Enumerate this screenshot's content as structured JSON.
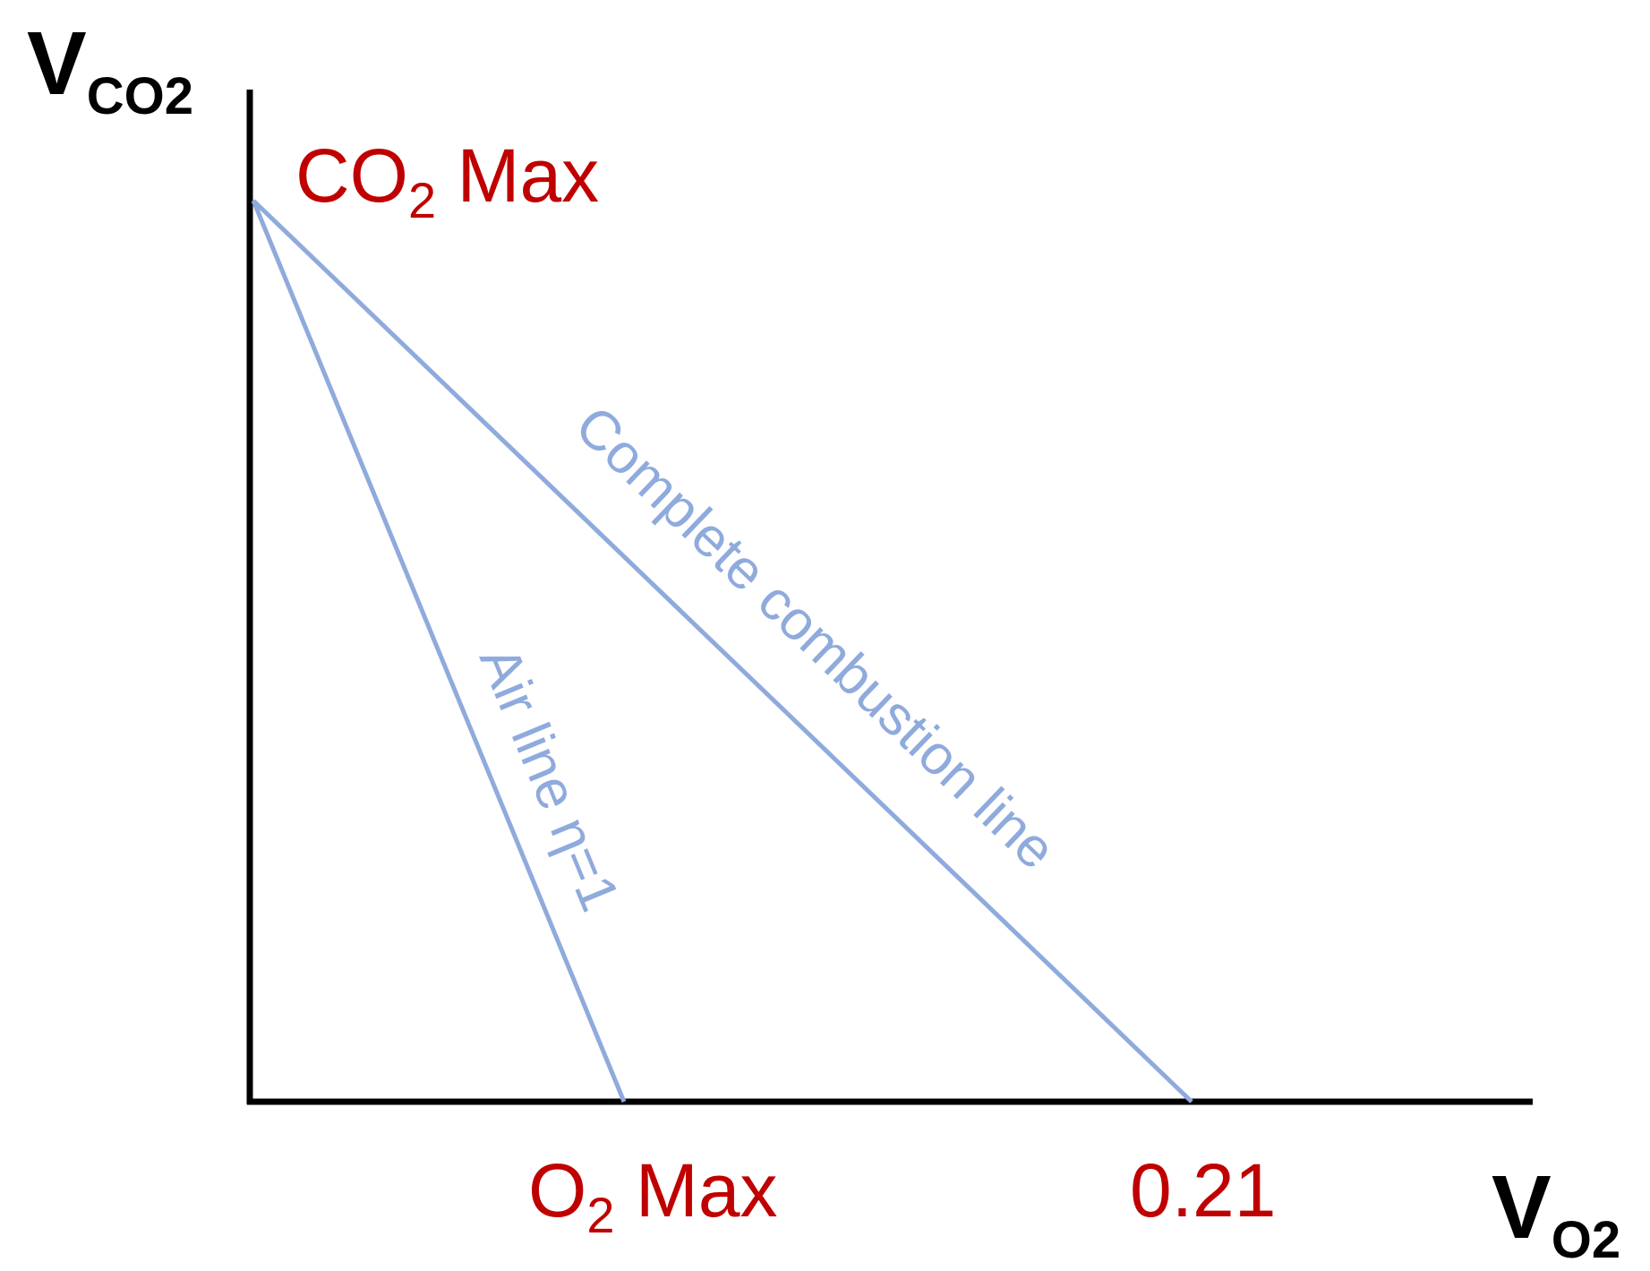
{
  "axes": {
    "y_title": {
      "main": "V",
      "sub": "CO2"
    },
    "x_title": {
      "main": "V",
      "sub": "O2"
    }
  },
  "points": {
    "co2_max": {
      "main": "CO",
      "sub": "2",
      "rest": " Max"
    },
    "o2_max": {
      "main": "O",
      "sub": "2",
      "rest": " Max"
    },
    "o2_air": "0.21"
  },
  "lines": {
    "complete_combustion": "Complete combustion line",
    "air_line": "Air line η=1"
  },
  "colors": {
    "axis": "#000000",
    "line": "#8faadc",
    "label": "#c00000"
  }
}
